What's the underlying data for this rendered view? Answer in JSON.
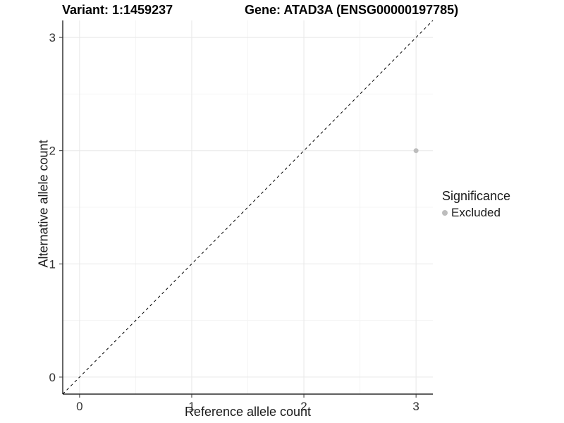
{
  "title": {
    "variant": "Variant: 1:1459237",
    "gene": "Gene: ATAD3A (ENSG00000197785)"
  },
  "legend": {
    "title": "Significance",
    "items": [
      {
        "label": "Excluded",
        "color": "#bdbdbd"
      }
    ]
  },
  "chart_data": {
    "type": "scatter",
    "title": "Variant: 1:1459237 — Gene: ATAD3A (ENSG00000197785)",
    "xlabel": "Reference allele count",
    "ylabel": "Alternative allele count",
    "xlim": [
      -0.15,
      3.15
    ],
    "ylim": [
      -0.15,
      3.15
    ],
    "xticks": [
      0,
      1,
      2,
      3
    ],
    "yticks": [
      0,
      1,
      2,
      3
    ],
    "xtick_labels": [
      "0",
      "1",
      "2",
      "3"
    ],
    "ytick_labels": [
      "0",
      "1",
      "2",
      "3"
    ],
    "xminor": [
      0.5,
      1.5,
      2.5
    ],
    "yminor": [
      0.5,
      1.5,
      2.5
    ],
    "grid": "major+minor",
    "legend_position": "right",
    "series": [
      {
        "name": "Excluded",
        "color": "#bdbdbd",
        "point_radius": 3.5,
        "points": [
          {
            "x": 3,
            "y": 2
          }
        ]
      }
    ],
    "reference_line": {
      "type": "identity",
      "style": "dashed",
      "dash": [
        4,
        4
      ],
      "color": "#000000"
    }
  },
  "colors": {
    "background": "#ffffff",
    "grid_major": "#e8e8e8",
    "grid_minor": "#f4f4f4",
    "axis_line": "#000000",
    "tick_mark": "#333333",
    "tick_label": "#333333"
  }
}
